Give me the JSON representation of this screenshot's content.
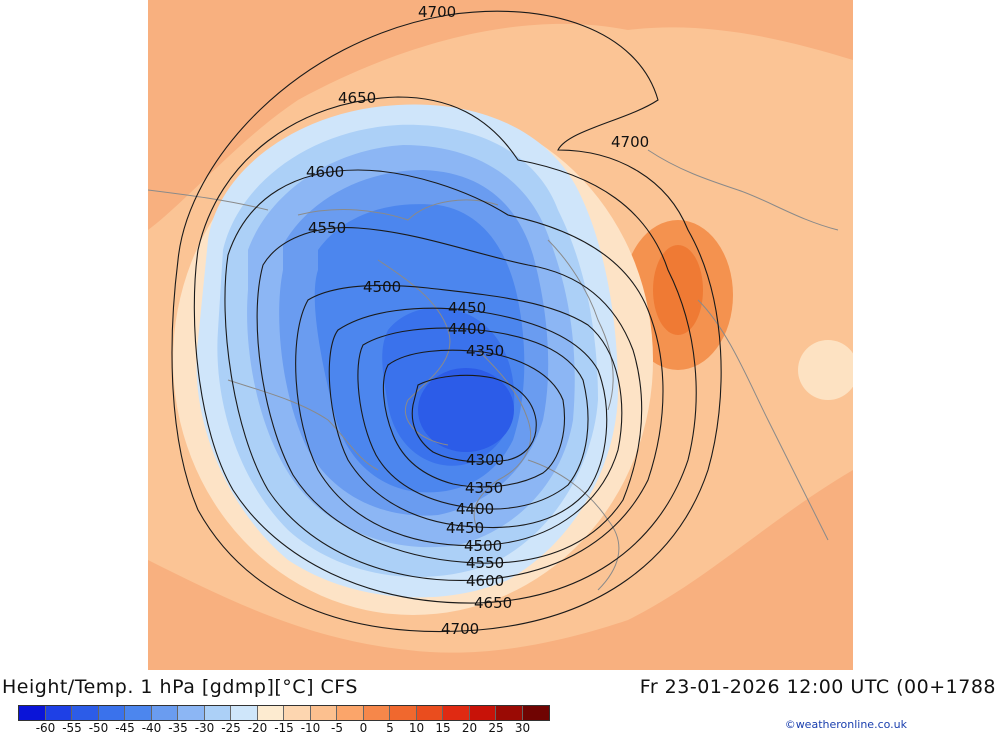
{
  "title": "Height/Temp. 1 hPa [gdmp][°C] CFS",
  "datetime": "Fr 23-01-2026 12:00 UTC (00+1788",
  "credit": "©weatheronline.co.uk",
  "colorbar": {
    "ticks": [
      "-60",
      "-55",
      "-50",
      "-45",
      "-40",
      "-35",
      "-30",
      "-25",
      "-20",
      "-15",
      "-10",
      "-5",
      "0",
      "5",
      "10",
      "15",
      "20",
      "25",
      "30"
    ],
    "colors": [
      "#0a14d8",
      "#1e40e6",
      "#2c5ce8",
      "#3a72ec",
      "#4c86ee",
      "#6a9cf0",
      "#8cb6f4",
      "#acd0f7",
      "#cfe6fa",
      "#fdebd0",
      "#fdd6b0",
      "#fcc08f",
      "#fba56a",
      "#f6874a",
      "#f0682e",
      "#ea4d1e",
      "#e02a12",
      "#c81208",
      "#9a0a04",
      "#700402"
    ]
  },
  "contours": [
    {
      "label": "4700"
    },
    {
      "label": "4650"
    },
    {
      "label": "4600"
    },
    {
      "label": "4550"
    },
    {
      "label": "4500"
    },
    {
      "label": "4450"
    },
    {
      "label": "4400"
    },
    {
      "label": "4350"
    },
    {
      "label": "4300"
    }
  ],
  "contour_labels": [
    "4700",
    "4700",
    "4650",
    "4600",
    "4550",
    "4500",
    "4450",
    "4400",
    "4350",
    "4300",
    "4350",
    "4400",
    "4450",
    "4500",
    "4550",
    "4600",
    "4650",
    "4700"
  ]
}
